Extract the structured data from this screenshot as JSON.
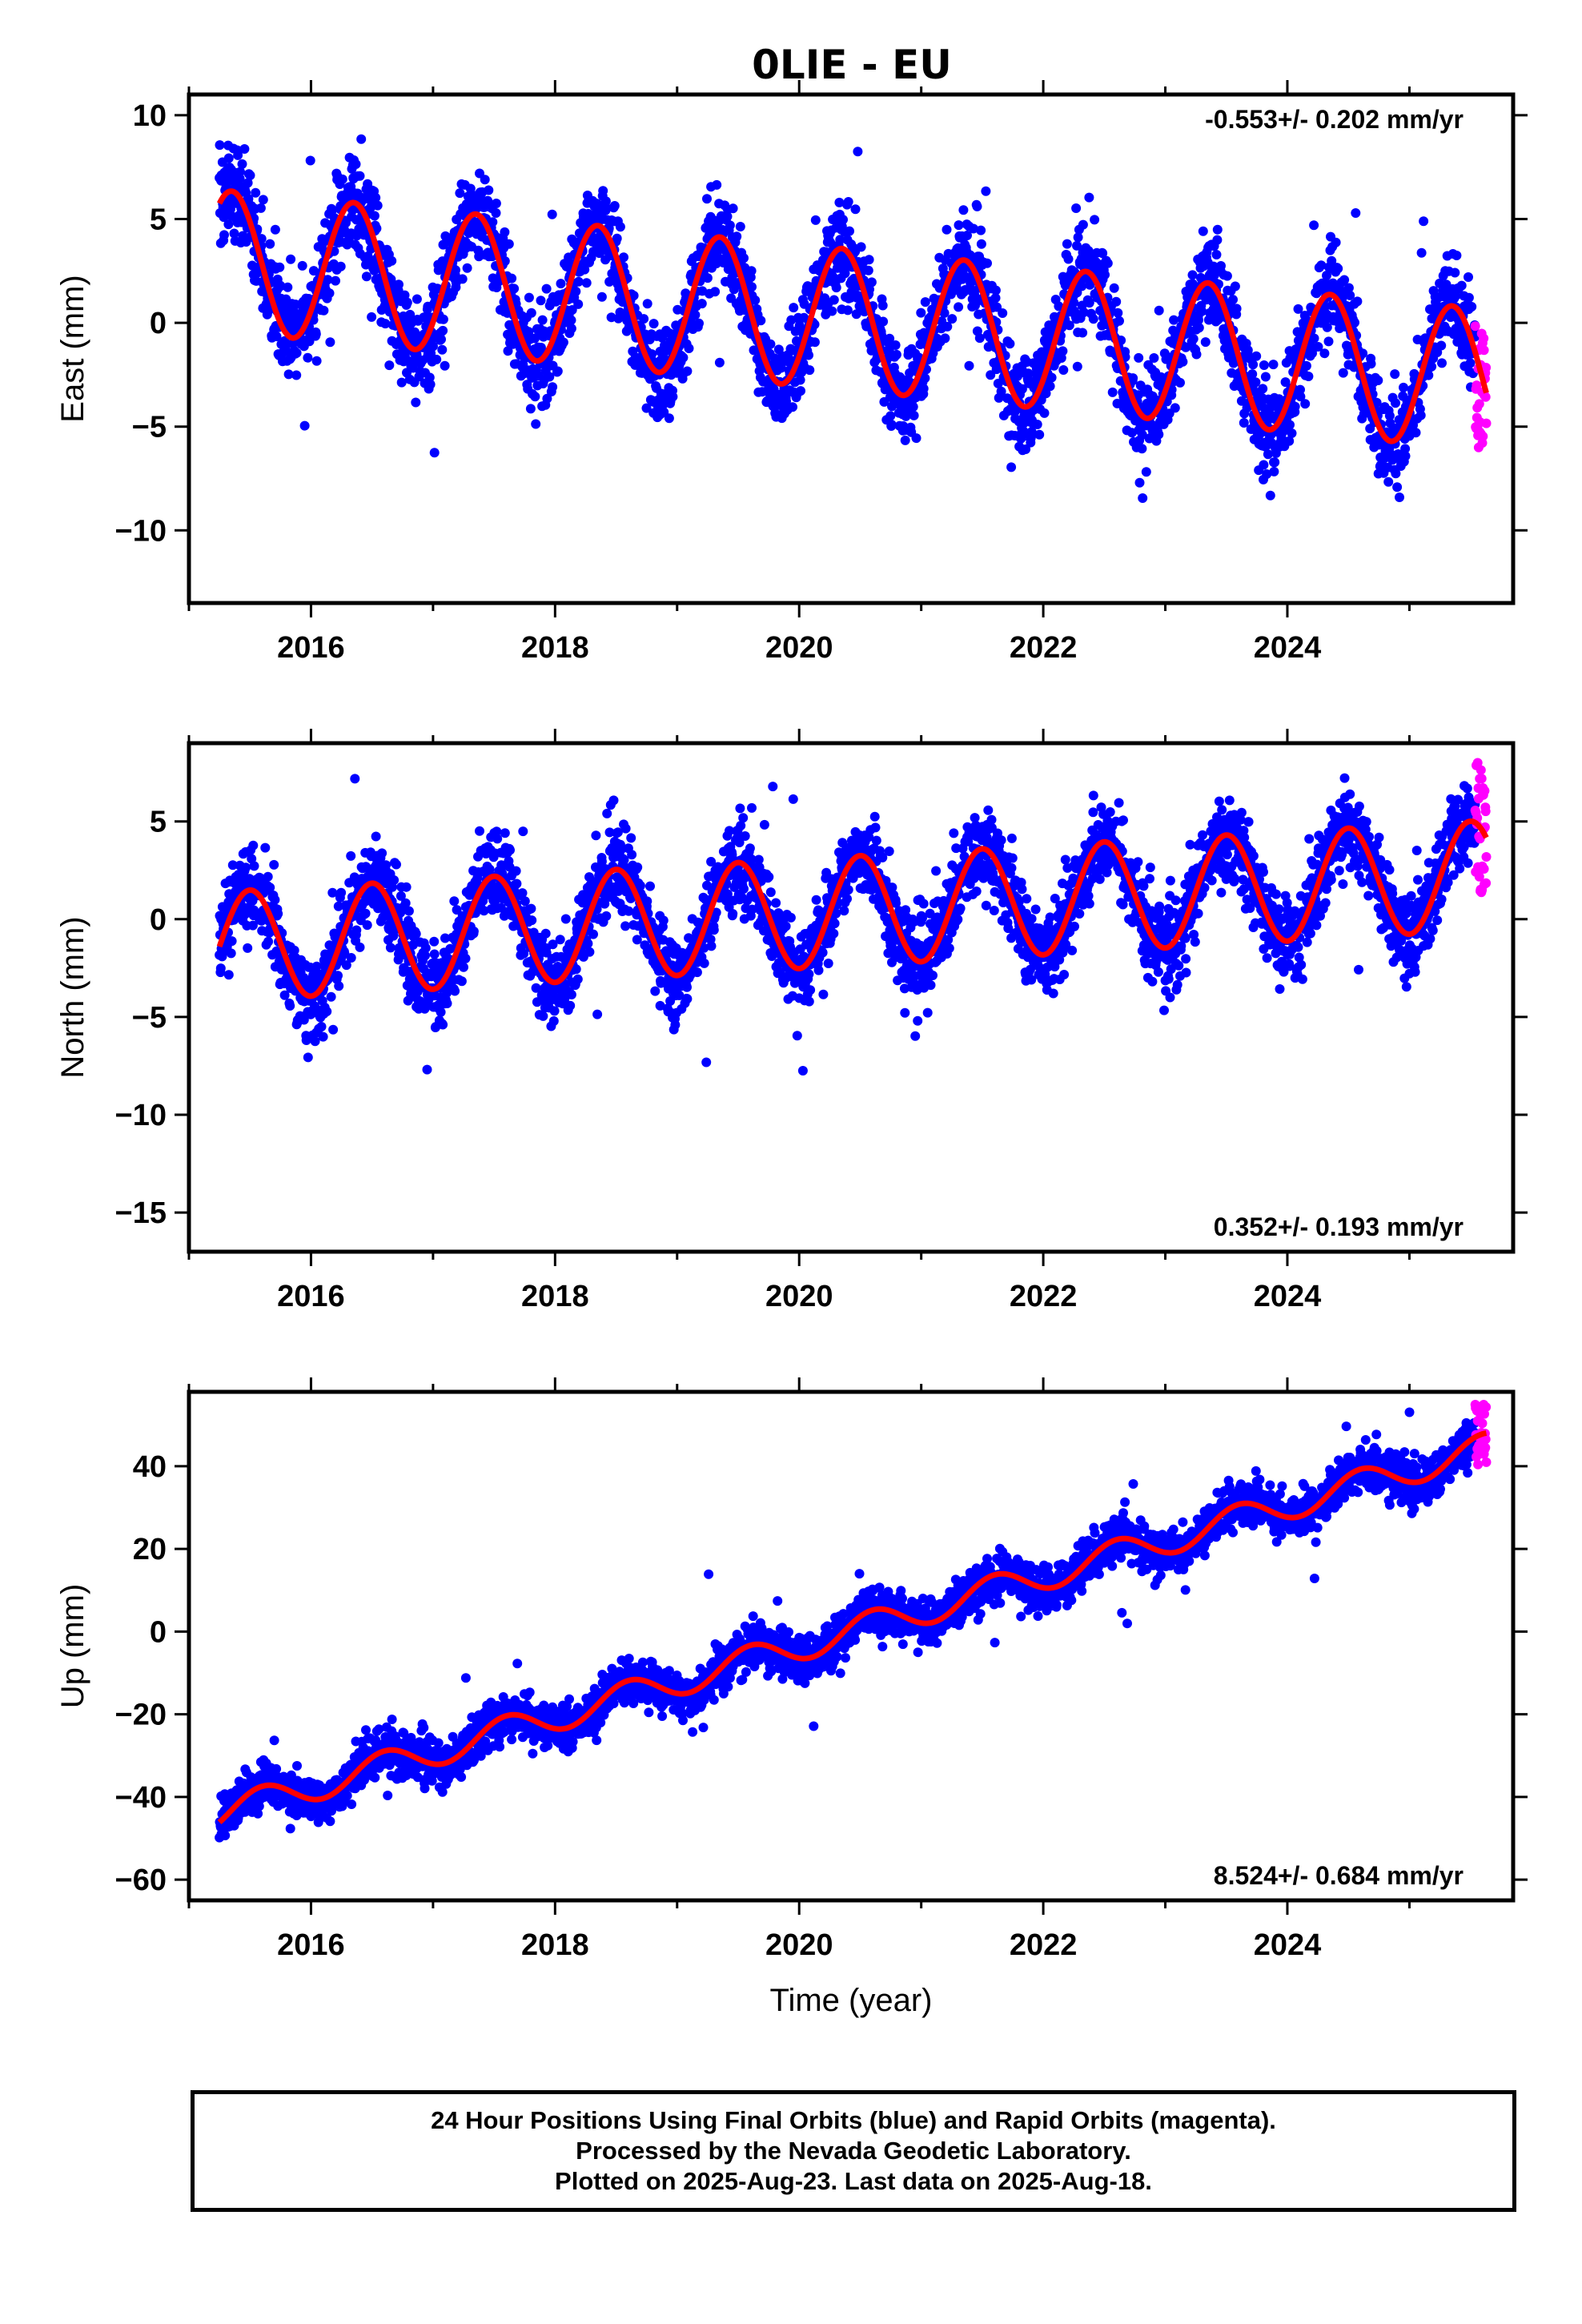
{
  "title": "0LIE - EU",
  "caption": [
    "24 Hour Positions Using Final Orbits (blue) and Rapid Orbits (magenta).",
    "Processed by the Nevada Geodetic Laboratory.",
    "Plotted on 2025-Aug-23. Last data on 2025-Aug-18."
  ],
  "colors": {
    "final": "#0000ff",
    "rapid": "#ff00ff",
    "model": "#ff0000",
    "axis": "#000000"
  },
  "chart_data": [
    {
      "type": "scatter",
      "panel": "east",
      "ylabel": "East (mm)",
      "xlabel": "",
      "xlim": [
        2015.0,
        2025.85
      ],
      "ylim": [
        -13.5,
        11
      ],
      "xticks": [
        2016,
        2018,
        2020,
        2022,
        2024
      ],
      "yticks": [
        10,
        5,
        0,
        -5,
        -10
      ],
      "ytick_labels": [
        "10",
        "5",
        "0",
        "−5",
        "−10"
      ],
      "rate_text": "-0.553+/- 0.202 mm/yr",
      "rate_position": "top-right",
      "series": [
        {
          "kind": "final-orbits",
          "x_start": 2015.25,
          "x_end": 2025.54,
          "trend_mm_per_yr": -0.553,
          "offset_at_start": 3.0,
          "annual_amplitude": 3.4,
          "annual_phase_year": 2015.35,
          "scatter_sd": 1.5
        },
        {
          "kind": "rapid-orbits",
          "x_start": 2025.54,
          "x_end": 2025.63,
          "values_range": [
            -6.3,
            0
          ]
        },
        {
          "kind": "model",
          "x_start": 2015.25,
          "x_end": 2025.63
        }
      ]
    },
    {
      "type": "scatter",
      "panel": "north",
      "ylabel": "North (mm)",
      "xlabel": "",
      "xlim": [
        2015.0,
        2025.85
      ],
      "ylim": [
        -17,
        9
      ],
      "xticks": [
        2016,
        2018,
        2020,
        2022,
        2024
      ],
      "yticks": [
        5,
        0,
        -5,
        -10,
        -15
      ],
      "ytick_labels": [
        "5",
        "0",
        "−5",
        "−10",
        "−15"
      ],
      "rate_text": "0.352+/- 0.193 mm/yr",
      "rate_position": "bottom-right",
      "series": [
        {
          "kind": "final-orbits",
          "x_start": 2015.25,
          "x_end": 2025.54,
          "trend_mm_per_yr": 0.352,
          "offset_at_start": -1.4,
          "annual_amplitude": 2.8,
          "annual_phase_year": 2015.5,
          "scatter_sd": 1.4
        },
        {
          "kind": "rapid-orbits",
          "x_start": 2025.54,
          "x_end": 2025.63,
          "values_range": [
            1.2,
            8
          ]
        },
        {
          "kind": "model",
          "x_start": 2015.25,
          "x_end": 2025.63
        }
      ]
    },
    {
      "type": "scatter",
      "panel": "up",
      "ylabel": "Up (mm)",
      "xlabel": "Time (year)",
      "xlim": [
        2015.0,
        2025.85
      ],
      "ylim": [
        -65,
        58
      ],
      "xticks": [
        2016,
        2018,
        2020,
        2022,
        2024
      ],
      "yticks": [
        40,
        20,
        0,
        -20,
        -40,
        -60
      ],
      "ytick_labels": [
        "40",
        "20",
        "0",
        "−20",
        "−40",
        "−60"
      ],
      "rate_text": "8.524+/- 0.684 mm/yr",
      "rate_position": "bottom-right",
      "series": [
        {
          "kind": "final-orbits",
          "x_start": 2015.25,
          "x_end": 2025.54,
          "trend_mm_per_yr": 8.524,
          "offset_at_start": -44,
          "annual_amplitude": 3.6,
          "annual_phase_year": 2015.6,
          "scatter_sd": 3.5
        },
        {
          "kind": "rapid-orbits",
          "x_start": 2025.54,
          "x_end": 2025.63,
          "values_range": [
            40,
            55
          ]
        },
        {
          "kind": "model",
          "x_start": 2015.25,
          "x_end": 2025.63
        }
      ]
    }
  ]
}
